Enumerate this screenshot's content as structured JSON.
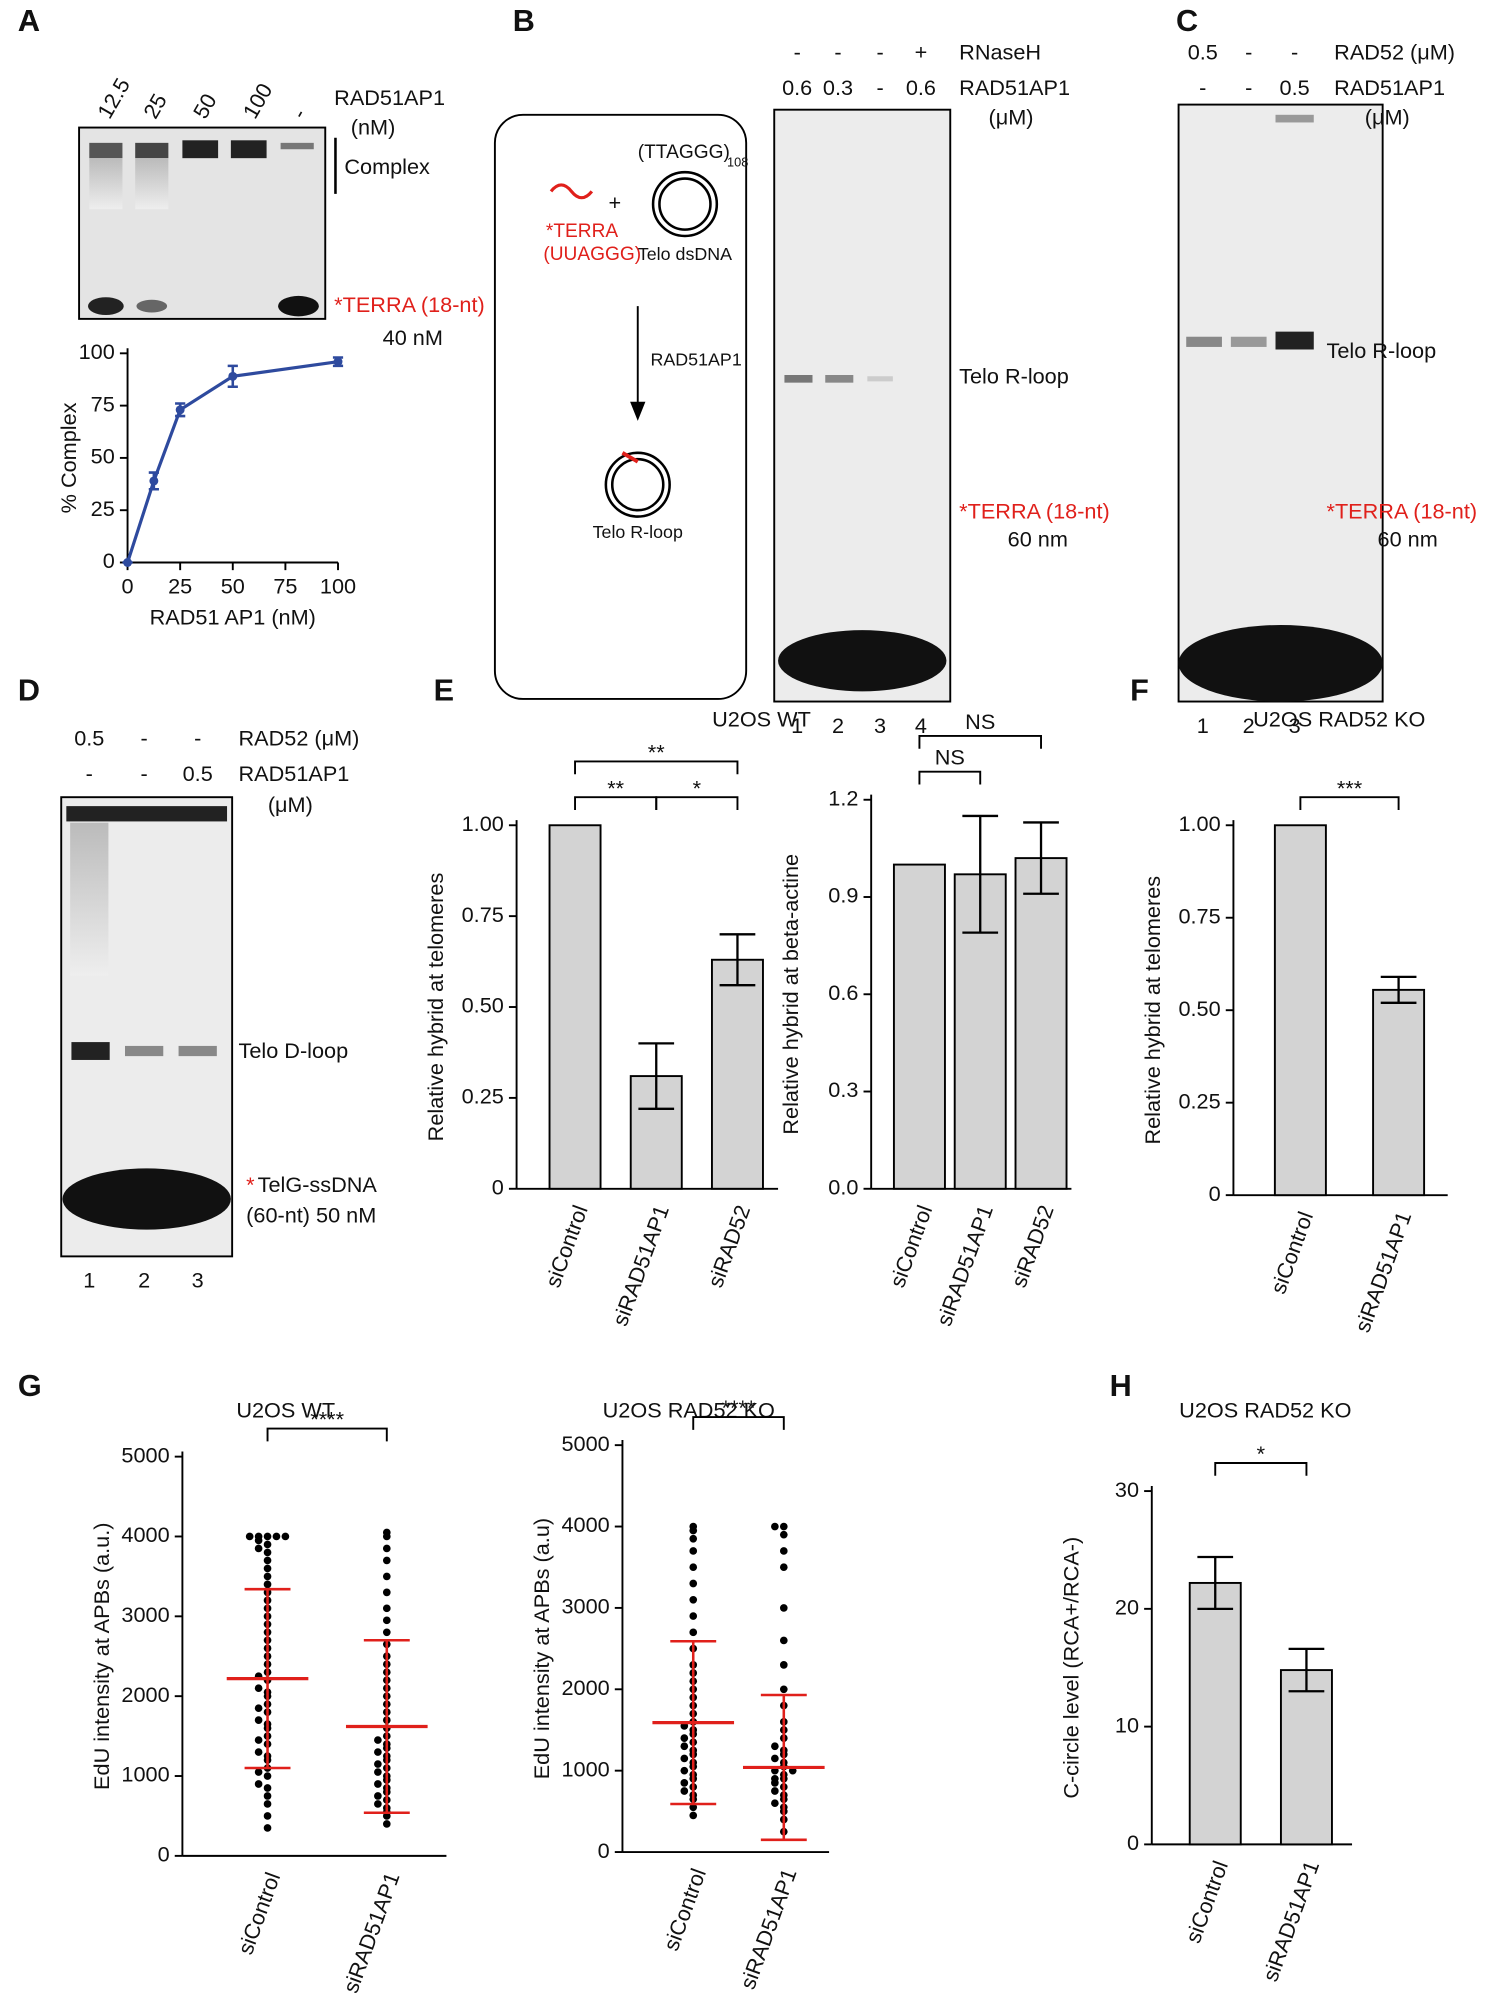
{
  "panels": {
    "A": {
      "letter": "A",
      "lanes": [
        "12.5",
        "25",
        "50",
        "100",
        "-"
      ],
      "protein": "RAD51AP1",
      "unit": "(nM)",
      "complex": "Complex",
      "substrate": "*TERRA (18-nt)",
      "conc": "40 nM"
    },
    "B": {
      "letter": "B",
      "row1": [
        "-",
        "-",
        "-",
        "+"
      ],
      "row1_label": "RNaseH",
      "row2": [
        "0.6",
        "0.3",
        "-",
        "0.6"
      ],
      "row2_label": "RAD51AP1",
      "unit": "(μM)",
      "diagram": {
        "repeat": "(TTAGGG)",
        "repeat_n": "108",
        "plus": "+",
        "rna": "*TERRA",
        "rna_seq": "(UUAGGG)",
        "dsdna": "Telo dsDNA",
        "enzyme": "RAD51AP1",
        "product": "Telo R-loop"
      },
      "band": "Telo R-loop",
      "substrate": "*TERRA (18-nt)",
      "conc": "60 nm",
      "lane_numbers": [
        "1",
        "2",
        "3",
        "4"
      ]
    },
    "C": {
      "letter": "C",
      "row1": [
        "0.5",
        "-",
        "-"
      ],
      "row1_label": "RAD52 (μM)",
      "row2": [
        "-",
        "-",
        "0.5"
      ],
      "row2_label": "RAD51AP1",
      "unit": "(μM)",
      "band": "Telo R-loop",
      "substrate": "*TERRA (18-nt)",
      "conc": "60 nm",
      "lane_numbers": [
        "1",
        "2",
        "3"
      ]
    },
    "D": {
      "letter": "D",
      "row1": [
        "0.5",
        "-",
        "-"
      ],
      "row1_label": "RAD52 (μM)",
      "row2": [
        "-",
        "-",
        "0.5"
      ],
      "row2_label": "RAD51AP1",
      "unit": "(μM)",
      "band": "Telo D-loop",
      "star": "*",
      "substrate": "TelG-ssDNA",
      "conc": "(60-nt) 50 nM",
      "lane_numbers": [
        "1",
        "2",
        "3"
      ]
    }
  },
  "chart_data": [
    {
      "type": "line",
      "label": "A",
      "x": [
        0,
        12.5,
        25,
        50,
        100
      ],
      "values": [
        0,
        39,
        73,
        89,
        96
      ],
      "errors": [
        0,
        4,
        3,
        5,
        2
      ],
      "color": "#2e4a9e",
      "xlim": [
        0,
        100
      ],
      "xticks": [
        0,
        25,
        50,
        75,
        100
      ],
      "ylim": [
        0,
        100
      ],
      "yticks": [
        0,
        25,
        50,
        75,
        100
      ],
      "ylabel": "% Complex",
      "xlabel": "RAD51 AP1 (nM)"
    },
    {
      "type": "bar",
      "label": "E",
      "title": "U2OS WT",
      "categories": [
        "siControl",
        "siRAD51AP1",
        "siRAD52"
      ],
      "values": [
        1.0,
        0.31,
        0.63
      ],
      "errors": [
        0,
        0.09,
        0.07
      ],
      "color": "#d3d3d3",
      "ylim": [
        0,
        1
      ],
      "yticks": [
        {
          "value": 0,
          "label": "0"
        },
        {
          "value": 0.25,
          "label": "0.25"
        },
        {
          "value": 0.5,
          "label": "0.50"
        },
        {
          "value": 0.75,
          "label": "0.75"
        },
        {
          "value": 1,
          "label": "1.00"
        }
      ],
      "ylabel": "Relative hybrid at telomeres",
      "annotations": [
        {
          "text": "**",
          "from": 0,
          "to": 1,
          "level": 0
        },
        {
          "text": "*",
          "from": 1,
          "to": 2,
          "level": 0
        },
        {
          "text": "**",
          "from": 0,
          "to": 2,
          "level": 1
        }
      ]
    },
    {
      "type": "bar",
      "categories": [
        "siControl",
        "siRAD51AP1",
        "siRAD52"
      ],
      "values": [
        1.0,
        0.97,
        1.02
      ],
      "errors": [
        0,
        0.18,
        0.11
      ],
      "color": "#d3d3d3",
      "ylim": [
        0,
        1.2
      ],
      "yticks": [
        {
          "value": 0,
          "label": "0.0"
        },
        0.3,
        0.6,
        0.9,
        1.2
      ],
      "ylabel": "Relative hybrid at beta-actine",
      "annotations": [
        {
          "text": "NS",
          "from": 0,
          "to": 1,
          "level": 0
        },
        {
          "text": "NS",
          "from": 0,
          "to": 2,
          "level": 1
        }
      ]
    },
    {
      "type": "bar",
      "label": "F",
      "title": "U2OS RAD52 KO",
      "categories": [
        "siControl",
        "siRAD51AP1"
      ],
      "values": [
        1.0,
        0.555
      ],
      "errors": [
        0,
        0.035
      ],
      "color": "#d3d3d3",
      "ylim": [
        0,
        1
      ],
      "yticks": [
        0,
        0.25,
        {
          "value": 0.5,
          "label": "0.50"
        },
        0.75,
        {
          "value": 1,
          "label": "1.00"
        }
      ],
      "ylabel": "Relative hybrid at telomeres",
      "annotations": [
        {
          "text": "***",
          "from": 0,
          "to": 1,
          "level": 0
        }
      ]
    },
    {
      "type": "swarm",
      "label": "G",
      "title": "U2OS WT",
      "categories": [
        "siControl",
        "siRAD51AP1"
      ],
      "points": [
        [
          350,
          500,
          650,
          750,
          850,
          900,
          1000,
          1050,
          1100,
          1200,
          1250,
          1300,
          1400,
          1450,
          1500,
          1600,
          1650,
          1700,
          1800,
          1850,
          1900,
          2000,
          2050,
          2100,
          2200,
          2250,
          2300,
          2400,
          2500,
          2600,
          2700,
          2800,
          2900,
          3000,
          3100,
          3200,
          3300,
          3400,
          3500,
          3600,
          3700,
          3800,
          3850,
          3900,
          3950,
          4000,
          4000,
          4000,
          4000,
          4000
        ],
        [
          400,
          500,
          550,
          600,
          650,
          700,
          750,
          800,
          850,
          900,
          950,
          1000,
          1050,
          1100,
          1150,
          1200,
          1250,
          1300,
          1350,
          1400,
          1450,
          1500,
          1600,
          1700,
          1800,
          1900,
          2000,
          2100,
          2200,
          2300,
          2400,
          2500,
          2650,
          2800,
          2950,
          3100,
          3300,
          3500,
          3700,
          3850,
          4000,
          4050
        ]
      ],
      "mean": [
        2220,
        1620
      ],
      "sd": [
        1120,
        1080
      ],
      "color": "#000000",
      "error_color": "#e0201b",
      "ylim": [
        0,
        5000
      ],
      "yticks": [
        0,
        1000,
        2000,
        3000,
        4000,
        5000
      ],
      "ylabel": "EdU intensity at APBs (a.u.)",
      "annotations": [
        {
          "text": "****",
          "from": 0,
          "to": 1,
          "level": 0
        }
      ]
    },
    {
      "type": "swarm",
      "title": "U2OS RAD52 KO",
      "categories": [
        "siControl",
        "siRAD51AP1"
      ],
      "points": [
        [
          450,
          550,
          650,
          700,
          750,
          800,
          850,
          900,
          950,
          1000,
          1050,
          1100,
          1150,
          1200,
          1250,
          1300,
          1350,
          1400,
          1450,
          1500,
          1550,
          1600,
          1700,
          1800,
          1900,
          2000,
          2100,
          2200,
          2300,
          2500,
          2700,
          2900,
          3100,
          3300,
          3500,
          3700,
          3850,
          3950,
          4000
        ],
        [
          250,
          400,
          500,
          550,
          600,
          650,
          700,
          750,
          800,
          850,
          900,
          900,
          950,
          1000,
          1000,
          1050,
          1100,
          1150,
          1200,
          1250,
          1300,
          1400,
          1500,
          1600,
          1800,
          2000,
          2300,
          2600,
          3000,
          3500,
          3700,
          3900,
          4000,
          4000
        ]
      ],
      "mean": [
        1590,
        1040
      ],
      "sd": [
        1000,
        890
      ],
      "color": "#000000",
      "error_color": "#e0201b",
      "ylim": [
        0,
        5000
      ],
      "yticks": [
        0,
        1000,
        2000,
        3000,
        4000,
        5000
      ],
      "ylabel": "EdU intensity at APBs (a.u)",
      "annotations": [
        {
          "text": "****",
          "from": 0,
          "to": 1,
          "level": 0
        }
      ]
    },
    {
      "type": "bar",
      "label": "H",
      "title": "U2OS RAD52 KO",
      "categories": [
        "siControl",
        "siRAD51AP1"
      ],
      "values": [
        22.2,
        14.8
      ],
      "errors": [
        2.2,
        1.8
      ],
      "color": "#d3d3d3",
      "ylim": [
        0,
        30
      ],
      "yticks": [
        0,
        10,
        20,
        30
      ],
      "ylabel": "C-circle level (RCA+/RCA-)",
      "annotations": [
        {
          "text": "*",
          "from": 0,
          "to": 1,
          "level": 0
        }
      ]
    }
  ]
}
